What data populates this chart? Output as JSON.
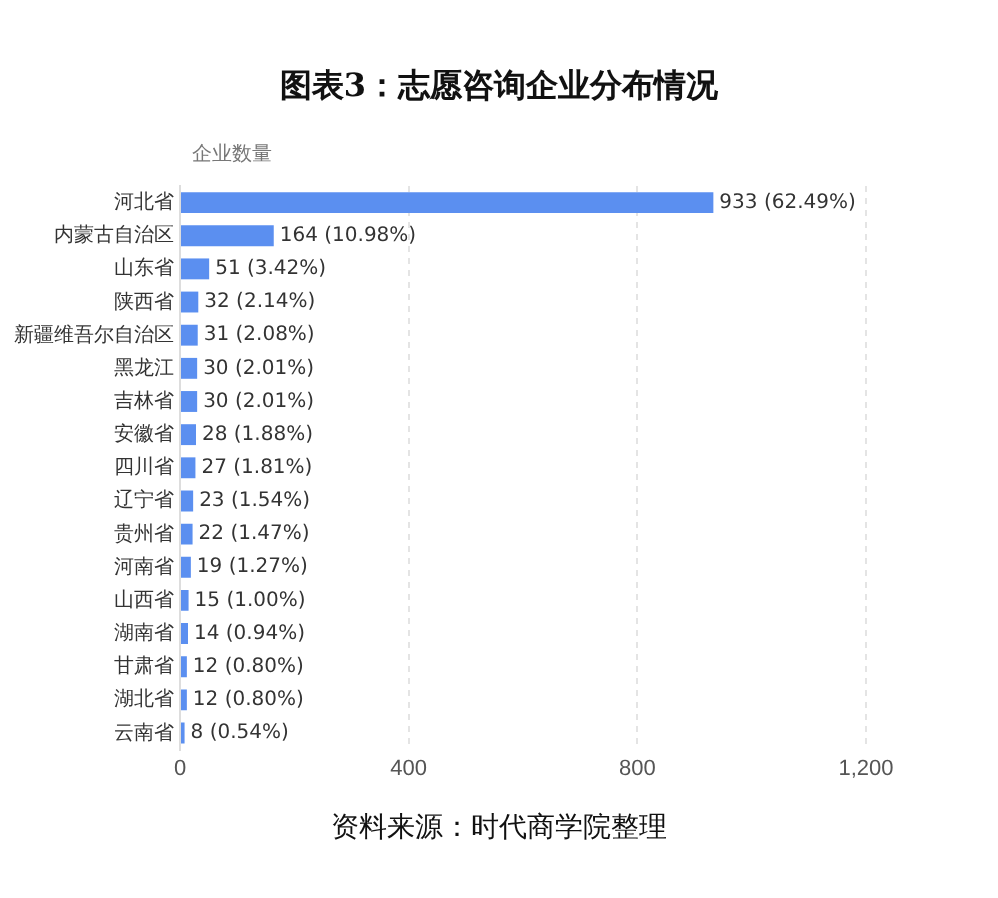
{
  "chart_data": {
    "type": "bar",
    "orientation": "horizontal",
    "title": "图表3：志愿咨询企业分布情况",
    "xlabel": "企业数量",
    "categories": [
      "河北省",
      "内蒙古自治区",
      "山东省",
      "陕西省",
      "新疆维吾尔自治区",
      "黑龙江",
      "吉林省",
      "安徽省",
      "四川省",
      "辽宁省",
      "贵州省",
      "河南省",
      "山西省",
      "湖南省",
      "甘肃省",
      "湖北省",
      "云南省"
    ],
    "values": [
      933,
      164,
      51,
      32,
      31,
      30,
      30,
      28,
      27,
      23,
      22,
      19,
      15,
      14,
      12,
      12,
      8
    ],
    "value_labels": [
      "933 (62.49%)",
      "164 (10.98%)",
      "51 (3.42%)",
      "32 (2.14%)",
      "31 (2.08%)",
      "30 (2.01%)",
      "30 (2.01%)",
      "28 (1.88%)",
      "27 (1.81%)",
      "23 (1.54%)",
      "22 (1.47%)",
      "19 (1.27%)",
      "15 (1.00%)",
      "14 (0.94%)",
      "12 (0.80%)",
      "12 (0.80%)",
      "8 (0.54%)"
    ],
    "color": "#5b8ff0",
    "xlim": [
      0,
      1200
    ],
    "xticks": [
      0,
      400,
      800,
      {
        "value": 1200,
        "label": "1,200"
      }
    ],
    "grid": "x",
    "annotations": [
      "资料来源：时代商学院整理"
    ]
  }
}
